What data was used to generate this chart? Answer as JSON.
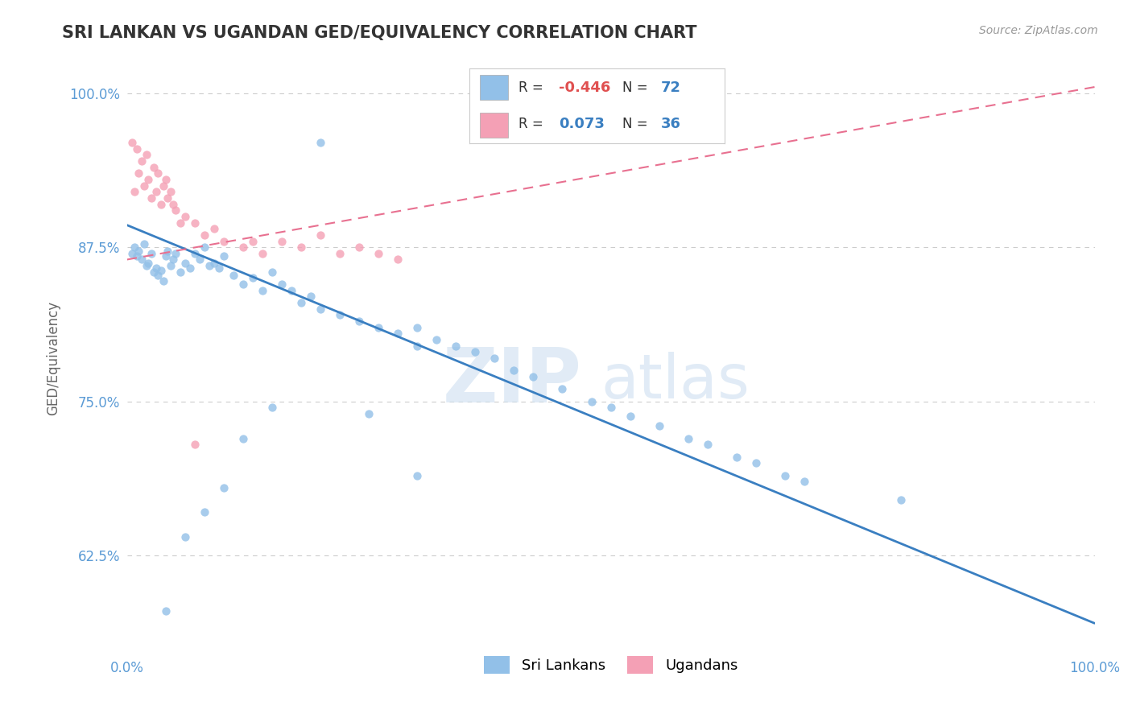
{
  "title": "SRI LANKAN VS UGANDAN GED/EQUIVALENCY CORRELATION CHART",
  "source": "Source: ZipAtlas.com",
  "ylabel": "GED/Equivalency",
  "y_tick_labels": [
    "62.5%",
    "75.0%",
    "87.5%",
    "100.0%"
  ],
  "y_tick_values": [
    0.625,
    0.75,
    0.875,
    1.0
  ],
  "sri_lankan_color": "#92c0e8",
  "ugandan_color": "#f4a0b5",
  "sri_lankan_line_color": "#3a7fc1",
  "ugandan_line_color": "#e87090",
  "legend_sri_r": "-0.446",
  "legend_sri_n": "72",
  "legend_uga_r": "0.073",
  "legend_uga_n": "36",
  "watermark_zip": "ZIP",
  "watermark_atlas": "atlas",
  "background_color": "#ffffff",
  "sri_lankans_label": "Sri Lankans",
  "ugandans_label": "Ugandans",
  "sri_line_x0": 0.0,
  "sri_line_y0": 0.893,
  "sri_line_x1": 1.0,
  "sri_line_y1": 0.57,
  "uga_line_x0": 0.0,
  "uga_line_y0": 0.865,
  "uga_line_x1": 1.0,
  "uga_line_y1": 1.005,
  "ylim_min": 0.545,
  "ylim_max": 1.025,
  "xlim_min": 0.0,
  "xlim_max": 1.0,
  "sri_x": [
    0.005,
    0.008,
    0.01,
    0.012,
    0.015,
    0.018,
    0.02,
    0.022,
    0.025,
    0.028,
    0.03,
    0.032,
    0.035,
    0.038,
    0.04,
    0.042,
    0.045,
    0.048,
    0.05,
    0.055,
    0.06,
    0.065,
    0.07,
    0.075,
    0.08,
    0.085,
    0.09,
    0.095,
    0.1,
    0.11,
    0.12,
    0.13,
    0.14,
    0.15,
    0.16,
    0.17,
    0.18,
    0.19,
    0.2,
    0.22,
    0.24,
    0.26,
    0.28,
    0.3,
    0.3,
    0.32,
    0.34,
    0.36,
    0.38,
    0.4,
    0.42,
    0.45,
    0.48,
    0.5,
    0.52,
    0.55,
    0.58,
    0.6,
    0.63,
    0.65,
    0.68,
    0.7,
    0.8,
    0.25,
    0.2,
    0.15,
    0.1,
    0.08,
    0.06,
    0.04,
    0.12,
    0.3
  ],
  "sri_y": [
    0.87,
    0.875,
    0.868,
    0.872,
    0.865,
    0.878,
    0.86,
    0.862,
    0.87,
    0.855,
    0.858,
    0.852,
    0.856,
    0.848,
    0.868,
    0.872,
    0.86,
    0.865,
    0.87,
    0.855,
    0.862,
    0.858,
    0.87,
    0.865,
    0.875,
    0.86,
    0.862,
    0.858,
    0.868,
    0.852,
    0.845,
    0.85,
    0.84,
    0.855,
    0.845,
    0.84,
    0.83,
    0.835,
    0.825,
    0.82,
    0.815,
    0.81,
    0.805,
    0.795,
    0.81,
    0.8,
    0.795,
    0.79,
    0.785,
    0.775,
    0.77,
    0.76,
    0.75,
    0.745,
    0.738,
    0.73,
    0.72,
    0.715,
    0.705,
    0.7,
    0.69,
    0.685,
    0.67,
    0.74,
    0.96,
    0.745,
    0.68,
    0.66,
    0.64,
    0.58,
    0.72,
    0.69
  ],
  "uga_x": [
    0.005,
    0.008,
    0.01,
    0.012,
    0.015,
    0.018,
    0.02,
    0.022,
    0.025,
    0.028,
    0.03,
    0.032,
    0.035,
    0.038,
    0.04,
    0.042,
    0.045,
    0.048,
    0.05,
    0.055,
    0.06,
    0.07,
    0.08,
    0.09,
    0.1,
    0.12,
    0.14,
    0.16,
    0.18,
    0.2,
    0.22,
    0.24,
    0.26,
    0.28,
    0.13,
    0.07
  ],
  "uga_y": [
    0.96,
    0.92,
    0.955,
    0.935,
    0.945,
    0.925,
    0.95,
    0.93,
    0.915,
    0.94,
    0.92,
    0.935,
    0.91,
    0.925,
    0.93,
    0.915,
    0.92,
    0.91,
    0.905,
    0.895,
    0.9,
    0.895,
    0.885,
    0.89,
    0.88,
    0.875,
    0.87,
    0.88,
    0.875,
    0.885,
    0.87,
    0.875,
    0.87,
    0.865,
    0.88,
    0.715
  ]
}
